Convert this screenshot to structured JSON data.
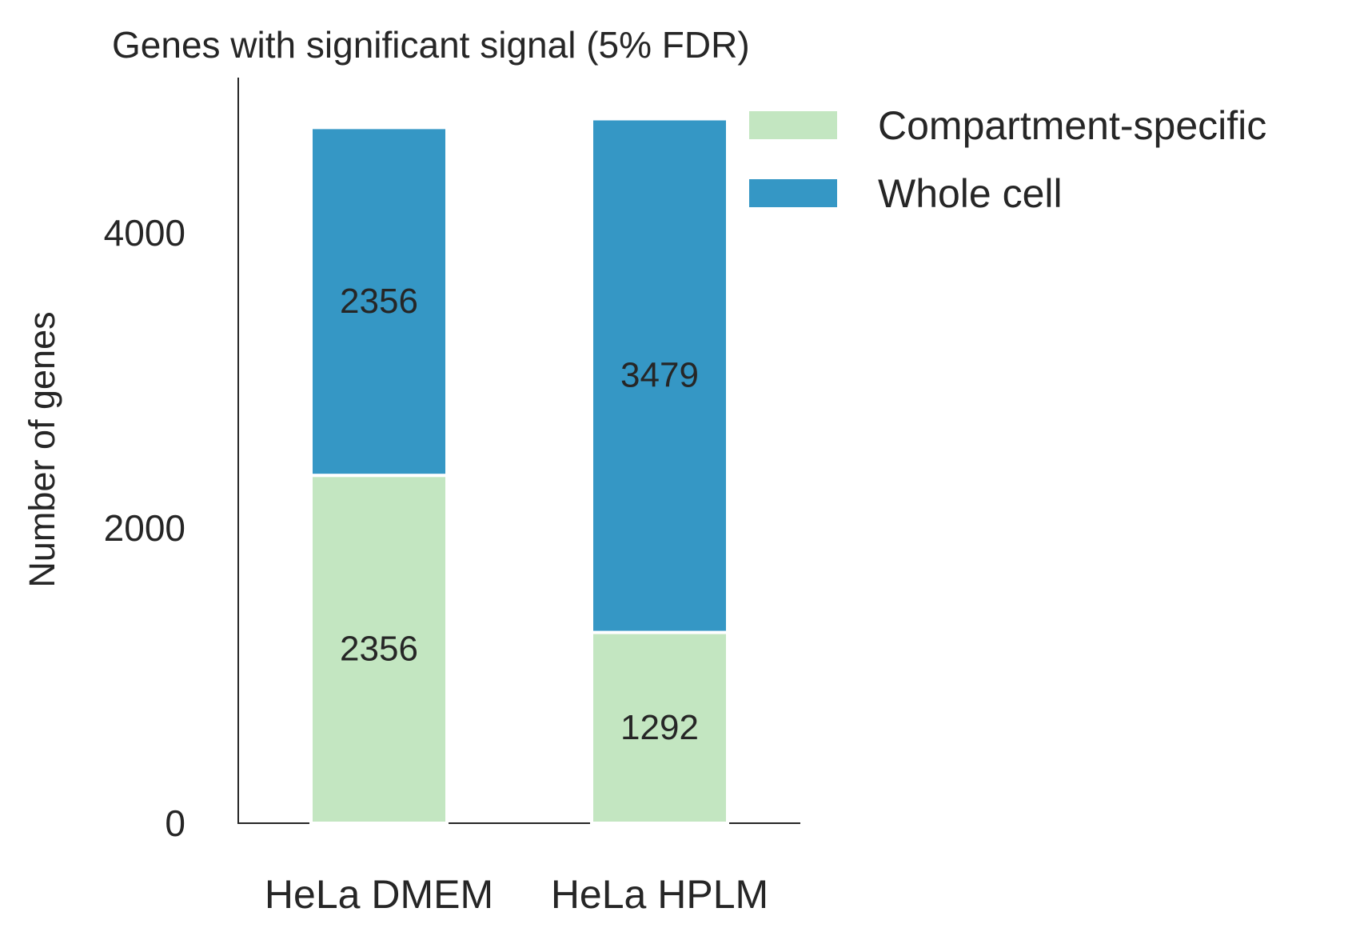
{
  "chart_data": {
    "type": "bar",
    "stacked": true,
    "title": "Genes with significant signal (5% FDR)",
    "xlabel": "",
    "ylabel": "Number of genes",
    "categories": [
      "HeLa DMEM",
      "HeLa HPLM"
    ],
    "yticks": [
      0,
      2000,
      4000
    ],
    "ytick_labels": [
      "0",
      "2000",
      "4000"
    ],
    "ylim": [
      0,
      5050
    ],
    "series": [
      {
        "name": "Compartment-specific",
        "color": "#c3e6c1",
        "values": [
          2356,
          1292
        ],
        "labels": [
          "2356",
          "1292"
        ]
      },
      {
        "name": "Whole cell",
        "color": "#3597c5",
        "values": [
          2356,
          3479
        ],
        "labels": [
          "2356",
          "3479"
        ]
      }
    ],
    "legend": {
      "position": "upper-right-outside"
    },
    "grid": false
  }
}
